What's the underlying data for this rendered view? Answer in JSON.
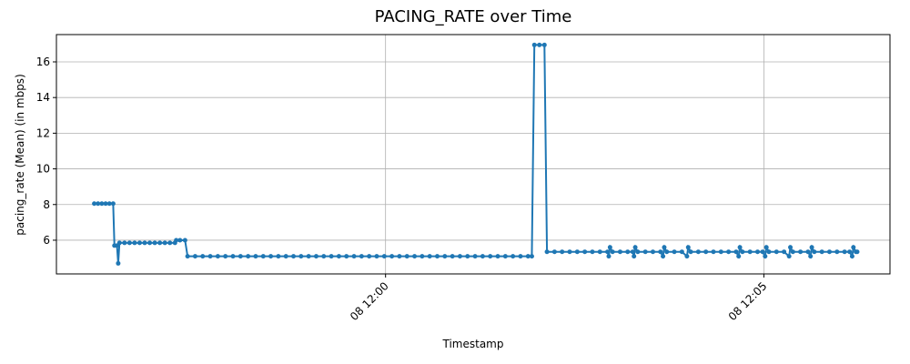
{
  "chart_data": {
    "type": "line",
    "title": "PACING_RATE over Time",
    "x_label": "Timestamp",
    "y_label": "pacing_rate (Mean) (in mbps)",
    "grid": true,
    "xlim": [
      "08 11:55:39",
      "08 12:06:40"
    ],
    "xticks": [
      "08 12:00",
      "08 12:05"
    ],
    "ylim": [
      4.11,
      17.53
    ],
    "yticks": [
      6,
      8,
      10,
      12,
      14,
      16
    ],
    "series": [
      {
        "name": "pacing_rate",
        "color": "#1f77b4",
        "x": [
          "08 11:56:09",
          "08 11:56:12",
          "08 11:56:15",
          "08 11:56:18",
          "08 11:56:21",
          "08 11:56:24",
          "08 11:56:25",
          "08 11:56:27",
          "08 11:56:28",
          "08 11:56:29",
          "08 11:56:33",
          "08 11:56:37",
          "08 11:56:41",
          "08 11:56:45",
          "08 11:56:49",
          "08 11:56:53",
          "08 11:56:57",
          "08 11:57:01",
          "08 11:57:05",
          "08 11:57:09",
          "08 11:57:13",
          "08 11:57:14",
          "08 11:57:17",
          "08 11:57:21",
          "08 11:57:23",
          "08 11:57:29",
          "08 11:57:35",
          "08 11:57:41",
          "08 11:57:47",
          "08 11:57:53",
          "08 11:57:59",
          "08 11:58:05",
          "08 11:58:11",
          "08 11:58:17",
          "08 11:58:23",
          "08 11:58:29",
          "08 11:58:35",
          "08 11:58:41",
          "08 11:58:47",
          "08 11:58:53",
          "08 11:58:59",
          "08 11:59:05",
          "08 11:59:11",
          "08 11:59:17",
          "08 11:59:23",
          "08 11:59:29",
          "08 11:59:35",
          "08 11:59:41",
          "08 11:59:47",
          "08 11:59:53",
          "08 11:59:59",
          "08 12:00:05",
          "08 12:00:11",
          "08 12:00:17",
          "08 12:00:23",
          "08 12:00:29",
          "08 12:00:35",
          "08 12:00:41",
          "08 12:00:47",
          "08 12:00:53",
          "08 12:00:59",
          "08 12:01:05",
          "08 12:01:11",
          "08 12:01:17",
          "08 12:01:23",
          "08 12:01:29",
          "08 12:01:35",
          "08 12:01:41",
          "08 12:01:47",
          "08 12:01:53",
          "08 12:01:56",
          "08 12:01:58",
          "08 12:02:02",
          "08 12:02:06",
          "08 12:02:08",
          "08 12:02:14",
          "08 12:02:20",
          "08 12:02:26",
          "08 12:02:32",
          "08 12:02:38",
          "08 12:02:44",
          "08 12:02:50",
          "08 12:02:56",
          "08 12:02:57",
          "08 12:02:58",
          "08 12:03:00",
          "08 12:03:06",
          "08 12:03:12",
          "08 12:03:16",
          "08 12:03:17",
          "08 12:03:18",
          "08 12:03:20",
          "08 12:03:26",
          "08 12:03:32",
          "08 12:03:38",
          "08 12:03:40",
          "08 12:03:41",
          "08 12:03:43",
          "08 12:03:49",
          "08 12:03:55",
          "08 12:03:59",
          "08 12:04:00",
          "08 12:04:02",
          "08 12:04:08",
          "08 12:04:14",
          "08 12:04:20",
          "08 12:04:26",
          "08 12:04:32",
          "08 12:04:38",
          "08 12:04:40",
          "08 12:04:41",
          "08 12:04:43",
          "08 12:04:49",
          "08 12:04:55",
          "08 12:04:59",
          "08 12:05:01",
          "08 12:05:02",
          "08 12:05:04",
          "08 12:05:10",
          "08 12:05:16",
          "08 12:05:20",
          "08 12:05:21",
          "08 12:05:23",
          "08 12:05:29",
          "08 12:05:35",
          "08 12:05:37",
          "08 12:05:38",
          "08 12:05:40",
          "08 12:05:46",
          "08 12:05:52",
          "08 12:05:58",
          "08 12:06:04",
          "08 12:06:08",
          "08 12:06:10",
          "08 12:06:11",
          "08 12:06:13",
          "08 12:06:14"
        ],
        "values": [
          8.05,
          8.05,
          8.05,
          8.05,
          8.05,
          8.05,
          5.7,
          5.7,
          4.7,
          5.85,
          5.85,
          5.85,
          5.85,
          5.85,
          5.85,
          5.85,
          5.85,
          5.85,
          5.85,
          5.85,
          5.85,
          6.0,
          6.0,
          6.0,
          5.1,
          5.1,
          5.1,
          5.1,
          5.1,
          5.1,
          5.1,
          5.1,
          5.1,
          5.1,
          5.1,
          5.1,
          5.1,
          5.1,
          5.1,
          5.1,
          5.1,
          5.1,
          5.1,
          5.1,
          5.1,
          5.1,
          5.1,
          5.1,
          5.1,
          5.1,
          5.1,
          5.1,
          5.1,
          5.1,
          5.1,
          5.1,
          5.1,
          5.1,
          5.1,
          5.1,
          5.1,
          5.1,
          5.1,
          5.1,
          5.1,
          5.1,
          5.1,
          5.1,
          5.1,
          5.1,
          5.1,
          16.95,
          16.95,
          16.95,
          5.35,
          5.35,
          5.35,
          5.35,
          5.35,
          5.35,
          5.35,
          5.35,
          5.35,
          5.1,
          5.6,
          5.35,
          5.35,
          5.35,
          5.35,
          5.1,
          5.6,
          5.35,
          5.35,
          5.35,
          5.35,
          5.1,
          5.6,
          5.35,
          5.35,
          5.35,
          5.1,
          5.6,
          5.35,
          5.35,
          5.35,
          5.35,
          5.35,
          5.35,
          5.35,
          5.1,
          5.6,
          5.35,
          5.35,
          5.35,
          5.35,
          5.1,
          5.6,
          5.35,
          5.35,
          5.35,
          5.1,
          5.6,
          5.35,
          5.35,
          5.35,
          5.1,
          5.6,
          5.35,
          5.35,
          5.35,
          5.35,
          5.35,
          5.35,
          5.1,
          5.6,
          5.35,
          5.35
        ]
      }
    ]
  }
}
